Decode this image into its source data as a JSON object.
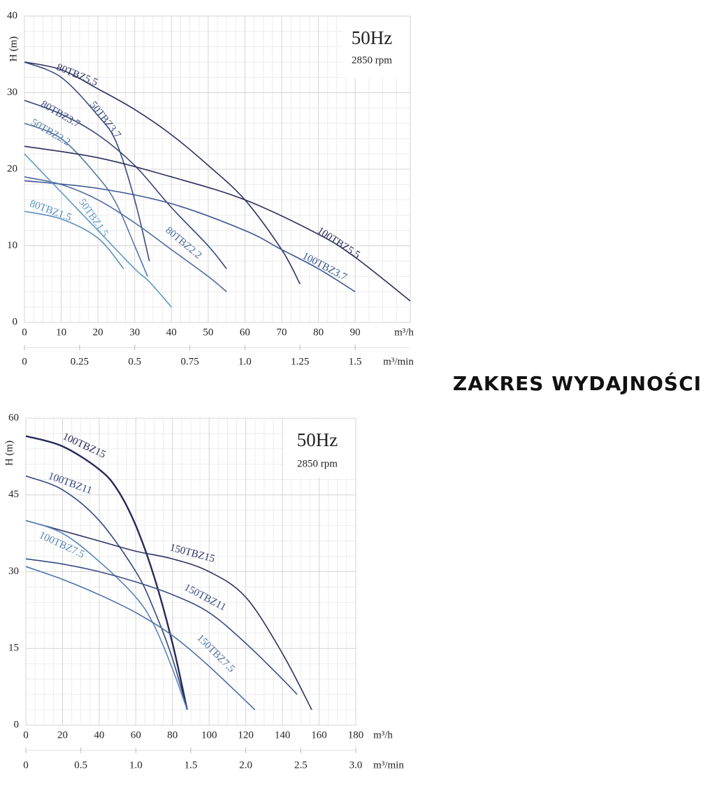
{
  "heading": "ZAKRES WYDAJNOŚCI",
  "chart_data": [
    {
      "type": "line",
      "title": "50Hz",
      "subtitle": "2850 rpm",
      "y_label": "H (m)",
      "x_label": "m³/h",
      "x2_label": "m³/min",
      "xlim": [
        0,
        105
      ],
      "xticks": [
        0,
        10,
        20,
        30,
        40,
        50,
        60,
        70,
        80,
        90
      ],
      "x2lim": [
        0,
        1.75
      ],
      "x2ticks": [
        0,
        0.25,
        0.5,
        0.75,
        {
          "value": 1,
          "label": "1.0"
        },
        1.25,
        1.5
      ],
      "ylim": [
        0,
        40
      ],
      "yticks": [
        0,
        10,
        20,
        30,
        40
      ],
      "grid": true,
      "series": [
        {
          "name": "80TBZ5.5",
          "color": "#2c3160",
          "x": [
            0,
            10,
            20,
            30,
            40,
            50,
            60,
            70,
            75
          ],
          "values": [
            34,
            33,
            30.5,
            27.8,
            24.5,
            20.5,
            16,
            9.5,
            5
          ]
        },
        {
          "name": "50TBZ3.7",
          "color": "#3a4a7e",
          "x": [
            0,
            10,
            20,
            25,
            30,
            34
          ],
          "values": [
            34,
            32,
            27,
            23.5,
            16,
            8
          ]
        },
        {
          "name": "80TBZ3.7",
          "color": "#34447a",
          "x": [
            0,
            10,
            20,
            30,
            40,
            50,
            55
          ],
          "values": [
            29,
            27.2,
            24.5,
            20.5,
            15,
            10,
            7
          ]
        },
        {
          "name": "50TBZ2.2",
          "color": "#5578a8",
          "x": [
            0,
            10,
            20,
            25,
            30,
            33.5
          ],
          "values": [
            26,
            24,
            19,
            15.5,
            10,
            6
          ]
        },
        {
          "name": "100TBZ5.5",
          "color": "#2a2e5c",
          "x": [
            0,
            20,
            40,
            60,
            80,
            90,
            105
          ],
          "values": [
            23,
            21.5,
            19,
            16,
            11.5,
            8.5,
            2.8
          ]
        },
        {
          "name": "100TBZ3.7",
          "color": "#3b5592",
          "x": [
            0,
            20,
            40,
            60,
            70,
            80,
            90
          ],
          "values": [
            18.5,
            17.5,
            15.5,
            12,
            9.5,
            7,
            4
          ]
        },
        {
          "name": "80TBZ2.2",
          "color": "#4c6a9e",
          "x": [
            0,
            10,
            20,
            30,
            40,
            50,
            55
          ],
          "values": [
            19,
            18,
            16,
            13,
            9.5,
            6,
            4
          ]
        },
        {
          "name": "50TBZ1.5",
          "color": "#5f9ac6",
          "x": [
            0,
            10,
            20,
            30,
            34,
            40
          ],
          "values": [
            22,
            17,
            12,
            7,
            5.3,
            2
          ]
        },
        {
          "name": "80TBZ1.5",
          "color": "#5a8fbf",
          "x": [
            0,
            10,
            20,
            27
          ],
          "values": [
            14.5,
            13.5,
            11,
            7
          ]
        }
      ]
    },
    {
      "type": "line",
      "title": "50Hz",
      "subtitle": "2850 rpm",
      "y_label": "H (m)",
      "x_label": "m³/h",
      "x2_label": "m³/min",
      "xlim": [
        0,
        180
      ],
      "xticks": [
        0,
        20,
        40,
        60,
        80,
        100,
        120,
        140,
        160,
        180
      ],
      "x2lim": [
        0,
        3
      ],
      "x2ticks": [
        0,
        0.5,
        {
          "value": 1,
          "label": "1.0"
        },
        1.5,
        {
          "value": 2,
          "label": "2.0"
        },
        2.5,
        {
          "value": 3,
          "label": "3.0"
        }
      ],
      "ylim": [
        0,
        60
      ],
      "yticks": [
        0,
        15,
        30,
        45,
        60
      ],
      "grid": true,
      "series": [
        {
          "name": "100TBZ15",
          "color": "#262a57",
          "x": [
            0,
            20,
            40,
            50,
            60,
            70,
            80,
            88
          ],
          "values": [
            56.5,
            54.5,
            50,
            46,
            39,
            29,
            16,
            3
          ]
        },
        {
          "name": "100TBZ11",
          "color": "#34467f",
          "x": [
            0,
            20,
            40,
            60,
            70,
            80,
            88
          ],
          "values": [
            48.7,
            46,
            40,
            30,
            22.5,
            13,
            3
          ]
        },
        {
          "name": "150TBZ15",
          "color": "#2e3362",
          "x": [
            0,
            20,
            40,
            60,
            80,
            100,
            120,
            140,
            156
          ],
          "values": [
            40,
            38,
            36,
            34,
            32.5,
            30,
            25,
            14,
            3
          ]
        },
        {
          "name": "100TBZ7.5",
          "color": "#5b86b6",
          "x": [
            0,
            20,
            40,
            60,
            70,
            80,
            88
          ],
          "values": [
            40,
            37.5,
            32,
            25,
            19.5,
            11,
            3
          ]
        },
        {
          "name": "150TBZ11",
          "color": "#3a4c84",
          "x": [
            0,
            20,
            40,
            60,
            80,
            100,
            120,
            140,
            148
          ],
          "values": [
            32.5,
            31.5,
            30,
            28,
            25.5,
            22,
            16,
            9,
            6
          ]
        },
        {
          "name": "150TBZ7.5",
          "color": "#4d72a8",
          "x": [
            0,
            20,
            40,
            60,
            80,
            100,
            125
          ],
          "values": [
            31,
            28.5,
            25.5,
            22,
            17.5,
            11.5,
            3
          ]
        }
      ]
    }
  ]
}
